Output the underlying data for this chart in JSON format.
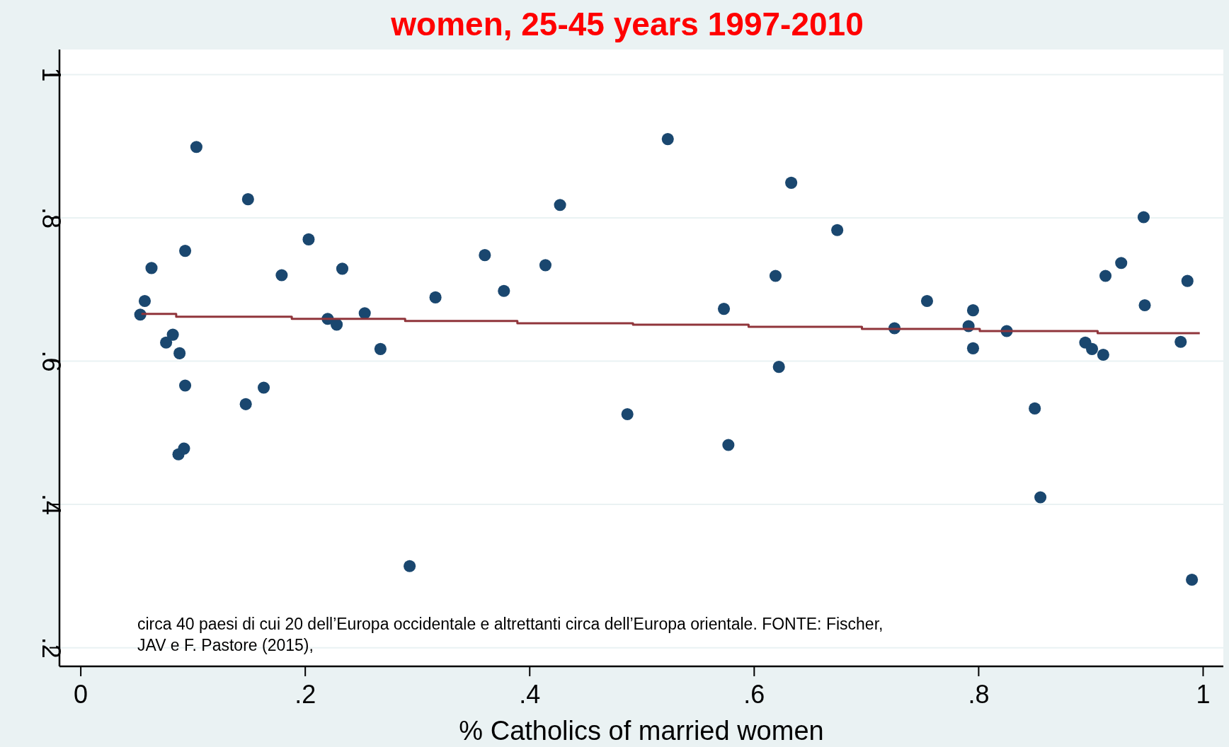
{
  "chart_data": {
    "type": "scatter",
    "title": "women, 25-45 years 1997-2010",
    "xlabel": "% Catholics of married women",
    "annotations": [
      "circa 40 paesi di cui 20 dell’Europa occidentale e altrettanti circa dell’Europa orientale. FONTE: Fischer, JAV e F. Pastore (2015),"
    ],
    "xlim": [
      -0.019,
      1.018
    ],
    "ylim": [
      0.174,
      1.035
    ],
    "xticks": [
      0,
      {
        "value": 0.2,
        "label": ".2"
      },
      {
        "value": 0.4,
        "label": ".4"
      },
      {
        "value": 0.6,
        "label": ".6"
      },
      {
        "value": 0.8,
        "label": ".8"
      },
      1
    ],
    "yticks": [
      {
        "value": 0.2,
        "label": ".2"
      },
      {
        "value": 0.4,
        "label": ".4"
      },
      {
        "value": 0.6,
        "label": ".6"
      },
      {
        "value": 0.8,
        "label": ".8"
      },
      1
    ],
    "grid": "y",
    "series": [
      {
        "marker": "circle",
        "color": "#1a476f",
        "x": [
          0.053,
          0.057,
          0.063,
          0.076,
          0.082,
          0.088,
          0.093,
          0.093,
          0.087,
          0.092,
          0.103,
          0.149,
          0.147,
          0.163,
          0.179,
          0.203,
          0.22,
          0.228,
          0.233,
          0.253,
          0.267,
          0.293,
          0.316,
          0.36,
          0.377,
          0.414,
          0.427,
          0.487,
          0.523,
          0.573,
          0.577,
          0.619,
          0.622,
          0.633,
          0.674,
          0.725,
          0.754,
          0.791,
          0.795,
          0.795,
          0.825,
          0.85,
          0.855,
          0.895,
          0.901,
          0.911,
          0.913,
          0.927,
          0.947,
          0.948,
          0.98,
          0.986,
          0.99
        ],
        "values": [
          0.665,
          0.684,
          0.73,
          0.626,
          0.637,
          0.611,
          0.566,
          0.754,
          0.47,
          0.478,
          0.899,
          0.826,
          0.54,
          0.563,
          0.72,
          0.77,
          0.659,
          0.651,
          0.729,
          0.667,
          0.617,
          0.314,
          0.689,
          0.748,
          0.698,
          0.734,
          0.818,
          0.526,
          0.91,
          0.673,
          0.483,
          0.719,
          0.592,
          0.849,
          0.783,
          0.646,
          0.684,
          0.649,
          0.671,
          0.618,
          0.642,
          0.534,
          0.41,
          0.626,
          0.617,
          0.609,
          0.719,
          0.737,
          0.801,
          0.678,
          0.627,
          0.712,
          0.295
        ]
      },
      {
        "type": "step",
        "marker": "none",
        "color": "#90353b",
        "x": [
          0.054,
          0.085,
          0.188,
          0.289,
          0.389,
          0.492,
          0.595,
          0.696,
          0.801,
          0.906,
          0.997
        ],
        "values": [
          0.666,
          0.662,
          0.659,
          0.656,
          0.653,
          0.651,
          0.648,
          0.645,
          0.642,
          0.639,
          0.639
        ]
      }
    ]
  }
}
